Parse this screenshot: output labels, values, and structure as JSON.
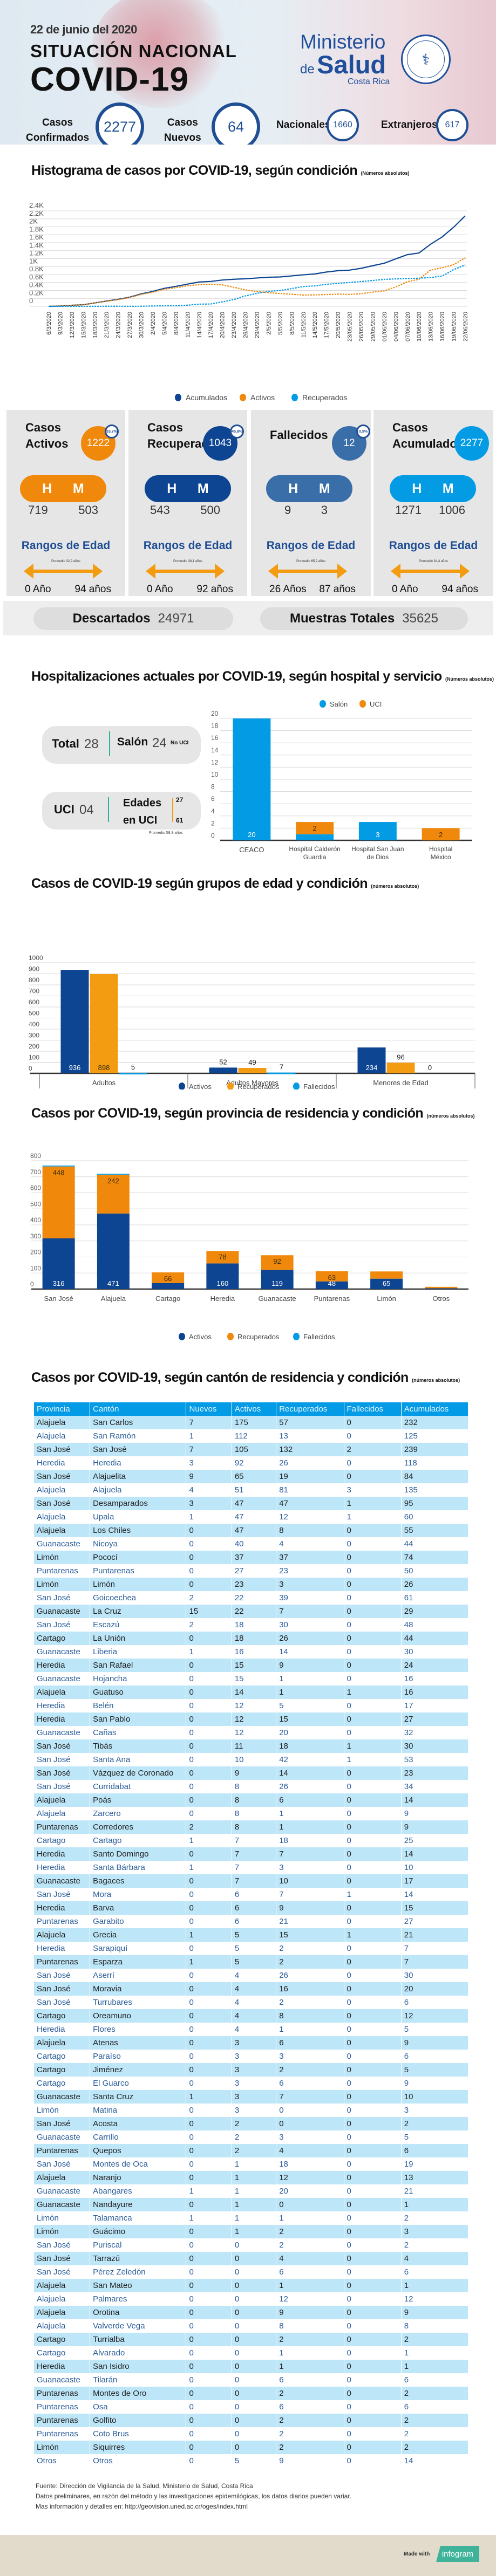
{
  "header": {
    "date": "22 de junio del 2020",
    "subtitle": "SITUACIÓN NACIONAL",
    "title": "COVID-19",
    "logo": {
      "line1": "Ministerio",
      "line2a": "de",
      "line2b": "Salud",
      "line3": "Costa Rica"
    },
    "kpis": {
      "confirmados": {
        "label1": "Casos",
        "label2": "Confirmados",
        "value": "2277"
      },
      "nuevos": {
        "label1": "Casos",
        "label2": "Nuevos",
        "value": "64"
      },
      "nacionales": {
        "label": "Nacionales",
        "value": "1660"
      },
      "extranjeros": {
        "label": "Extranjeros",
        "value": "617"
      }
    }
  },
  "colors": {
    "navy": "#0d4592",
    "orange": "#f0890b",
    "lightblue": "#049be5",
    "steel": "#3a6ea8",
    "ageArrow": "#f39c12"
  },
  "chart1": {
    "title": "Histograma de casos por COVID-19, según condición",
    "note": "(Números absolutos)"
  },
  "cards": [
    {
      "title1": "Casos",
      "title2": "Activos",
      "value": "1222",
      "pct": "53,7%",
      "h": "719",
      "m": "503",
      "hLabel": "H",
      "mLabel": "M",
      "ranges": "Rangos de Edad",
      "avg": "Promedio 32,9 años",
      "min": "0 Año",
      "max": "94 años"
    },
    {
      "title1": "Casos",
      "title2": "Recuperados",
      "value": "1043",
      "pct": "45,8%",
      "h": "543",
      "m": "500",
      "hLabel": "H",
      "mLabel": "M",
      "ranges": "Rangos de Edad",
      "avg": "Promedio 36,1 años",
      "min": "0 Año",
      "max": "92 años"
    },
    {
      "title1": "Fallecidos",
      "title2": "",
      "value": "12",
      "pct": "0,5%",
      "h": "9",
      "m": "3",
      "hLabel": "H",
      "mLabel": "M",
      "ranges": "Rangos de Edad",
      "avg": "Promedio 65,2 años",
      "min": "26 Años",
      "max": "87 años"
    },
    {
      "title1": "Casos",
      "title2": "Acumulados",
      "value": "2277",
      "pct": "",
      "h": "1271",
      "m": "1006",
      "hLabel": "H",
      "mLabel": "M",
      "ranges": "Rangos de Edad",
      "avg": "Promedio 34,4 años",
      "min": "0 Año",
      "max": "94 años"
    }
  ],
  "totals": {
    "descartados": {
      "label": "Descartados",
      "value": "24971"
    },
    "muestras": {
      "label": "Muestras Totales",
      "value": "35625"
    }
  },
  "hosp": {
    "title": "Hospitalizaciones actuales por COVID-19, según hospital y servicio",
    "note": "(Números absolutos)",
    "total_label": "Total",
    "total": "28",
    "salon_label": "Salón",
    "salon": "24",
    "no_uci": "No UCI",
    "uci_label": "UCI",
    "uci": "04",
    "edades1": "Edades",
    "edades2": "en UCI",
    "age_max": "27",
    "age_min": "61",
    "avg": "Promedio 58,9 años"
  },
  "chart_data": [
    {
      "type": "line",
      "title": "Histograma de casos por COVID-19, según condición",
      "subtitle": "(Números absolutos)",
      "xlabel": "",
      "ylabel": "",
      "ylim": [
        0,
        2400
      ],
      "yticks": [
        "0",
        "0.2K",
        "0.4K",
        "0.6K",
        "0.8K",
        "1K",
        "1.2K",
        "1.4K",
        "1.6K",
        "1.8K",
        "2K",
        "2.2K",
        "2.4K"
      ],
      "x_tick_labels": [
        "6/3/2020",
        "9/3/2020",
        "12/3/2020",
        "15/3/2020",
        "18/3/2020",
        "21/3/2020",
        "24/3/2020",
        "27/3/2020",
        "30/3/2020",
        "2/4/2020",
        "5/4/2020",
        "8/4/2020",
        "11/4/2020",
        "14/4/2020",
        "17/4/2020",
        "20/4/2020",
        "23/4/2020",
        "26/4/2020",
        "29/4/2020",
        "2/5/2020",
        "5/5/2020",
        "8/5/2020",
        "11/5/2020",
        "14/5/2020",
        "17/5/2020",
        "20/5/2020",
        "23/05/2020",
        "26/05/2020",
        "29/05/2020",
        "01/06/2020",
        "04/06/2020",
        "07/06/2020",
        "10/06/2020",
        "13/06/2020",
        "16/06/2020",
        "19/06/2020",
        "22/06/2020"
      ],
      "grid": true,
      "legend": "bottom",
      "series": [
        {
          "name": "Acumulados",
          "color": "#0d4592",
          "dash": false,
          "values": [
            1,
            9,
            27,
            41,
            87,
            134,
            177,
            231,
            314,
            375,
            454,
            502,
            558,
            612,
            626,
            662,
            681,
            693,
            713,
            733,
            739,
            765,
            792,
            815,
            863,
            897,
            911,
            956,
            1022,
            1084,
            1194,
            1300,
            1342,
            1561,
            1744,
            1990,
            2277
          ]
        },
        {
          "name": "Activos",
          "color": "#f0890b",
          "dash": true,
          "values": [
            1,
            9,
            26,
            40,
            84,
            129,
            169,
            222,
            300,
            355,
            428,
            470,
            518,
            545,
            557,
            540,
            480,
            415,
            372,
            345,
            323,
            305,
            284,
            289,
            296,
            308,
            300,
            319,
            358,
            390,
            490,
            620,
            680,
            912,
            970,
            1050,
            1222
          ]
        },
        {
          "name": "Recuperados",
          "color": "#049be5",
          "dash": true,
          "values": [
            0,
            0,
            0,
            0,
            2,
            3,
            3,
            2,
            3,
            9,
            16,
            20,
            30,
            56,
            59,
            112,
            171,
            264,
            328,
            375,
            400,
            446,
            498,
            514,
            555,
            577,
            600,
            625,
            650,
            678,
            690,
            700,
            707,
            725,
            760,
            925,
            1043
          ]
        }
      ]
    },
    {
      "type": "bar",
      "title": "Hospitalizaciones actuales por COVID-19, según hospital y servicio",
      "stacked": true,
      "categories": [
        "CEACO",
        "Hospital Calderón Guardia",
        "Hospital San Juan de Dios",
        "Hospital México"
      ],
      "ylim": [
        0,
        20
      ],
      "yticks": [
        0,
        2,
        4,
        6,
        8,
        10,
        12,
        14,
        16,
        18,
        20
      ],
      "legend": "top",
      "series": [
        {
          "name": "Salón",
          "color": "#049be5",
          "values": [
            20,
            1,
            3,
            0
          ]
        },
        {
          "name": "UCI",
          "color": "#f0890b",
          "values": [
            0,
            2,
            0,
            2
          ]
        }
      ]
    },
    {
      "type": "bar",
      "title": "Casos de COVID-19 según grupos de edad y condición",
      "subtitle": "(números absolutos)",
      "stacked": false,
      "categories": [
        "Adultos",
        "Adultos Mayores",
        "Menores de Edad"
      ],
      "ylim": [
        0,
        1000
      ],
      "yticks": [
        0,
        100,
        200,
        300,
        400,
        500,
        600,
        700,
        800,
        900,
        1000
      ],
      "legend": "bottom",
      "series": [
        {
          "name": "Activos",
          "color": "#0d4592",
          "values": [
            936,
            52,
            234
          ]
        },
        {
          "name": "Recuperados",
          "color": "#f39c12",
          "values": [
            898,
            49,
            96
          ]
        },
        {
          "name": "Fallecidos",
          "color": "#049be5",
          "values": [
            5,
            7,
            0
          ]
        }
      ]
    },
    {
      "type": "bar",
      "title": "Casos por COVID-19, según provincia de residencia y condición",
      "subtitle": "(números absolutos)",
      "stacked": true,
      "categories": [
        "San José",
        "Alajuela",
        "Cartago",
        "Heredia",
        "Guanacaste",
        "Puntarenas",
        "Limón",
        "Otros"
      ],
      "ylim": [
        0,
        800
      ],
      "yticks": [
        0,
        100,
        200,
        300,
        400,
        500,
        600,
        700,
        800
      ],
      "legend": "bottom",
      "series": [
        {
          "name": "Activos",
          "color": "#0d4592",
          "values": [
            316,
            471,
            38,
            160,
            119,
            48,
            65,
            5
          ]
        },
        {
          "name": "Recuperados",
          "color": "#f0890b",
          "values": [
            448,
            242,
            66,
            78,
            92,
            63,
            45,
            9
          ]
        },
        {
          "name": "Fallecidos",
          "color": "#049be5",
          "values": [
            6,
            6,
            0,
            0,
            0,
            0,
            0,
            0
          ]
        }
      ]
    }
  ],
  "canton": {
    "title": "Casos por COVID-19, según cantón de residencia y condición",
    "note": "(números absolutos)",
    "columns": [
      "Provincia",
      "Cantón",
      "Nuevos",
      "Activos",
      "Recuperados",
      "Fallecidos",
      "Acumulados"
    ],
    "rows": [
      [
        "Alajuela",
        "San Carlos",
        "7",
        "175",
        "57",
        "0",
        "232"
      ],
      [
        "Alajuela",
        "San Ramón",
        "1",
        "112",
        "13",
        "0",
        "125"
      ],
      [
        "San José",
        "San José",
        "7",
        "105",
        "132",
        "2",
        "239"
      ],
      [
        "Heredia",
        "Heredia",
        "3",
        "92",
        "26",
        "0",
        "118"
      ],
      [
        "San José",
        "Alajuelita",
        "9",
        "65",
        "19",
        "0",
        "84"
      ],
      [
        "Alajuela",
        "Alajuela",
        "4",
        "51",
        "81",
        "3",
        "135"
      ],
      [
        "San José",
        "Desamparados",
        "3",
        "47",
        "47",
        "1",
        "95"
      ],
      [
        "Alajuela",
        "Upala",
        "1",
        "47",
        "12",
        "1",
        "60"
      ],
      [
        "Alajuela",
        "Los Chiles",
        "0",
        "47",
        "8",
        "0",
        "55"
      ],
      [
        "Guanacaste",
        "Nicoya",
        "0",
        "40",
        "4",
        "0",
        "44"
      ],
      [
        "Limón",
        "Pococí",
        "0",
        "37",
        "37",
        "0",
        "74"
      ],
      [
        "Puntarenas",
        "Puntarenas",
        "0",
        "27",
        "23",
        "0",
        "50"
      ],
      [
        "Limón",
        "Limón",
        "0",
        "23",
        "3",
        "0",
        "26"
      ],
      [
        "San José",
        "Goicoechea",
        "2",
        "22",
        "39",
        "0",
        "61"
      ],
      [
        "Guanacaste",
        "La Cruz",
        "15",
        "22",
        "7",
        "0",
        "29"
      ],
      [
        "San José",
        "Escazú",
        "2",
        "18",
        "30",
        "0",
        "48"
      ],
      [
        "Cartago",
        "La Unión",
        "0",
        "18",
        "26",
        "0",
        "44"
      ],
      [
        "Guanacaste",
        "Liberia",
        "1",
        "16",
        "14",
        "0",
        "30"
      ],
      [
        "Heredia",
        "San Rafael",
        "0",
        "15",
        "9",
        "0",
        "24"
      ],
      [
        "Guanacaste",
        "Hojancha",
        "0",
        "15",
        "1",
        "0",
        "16"
      ],
      [
        "Alajuela",
        "Guatuso",
        "0",
        "14",
        "1",
        "1",
        "16"
      ],
      [
        "Heredia",
        "Belén",
        "0",
        "12",
        "5",
        "0",
        "17"
      ],
      [
        "Heredia",
        "San Pablo",
        "0",
        "12",
        "15",
        "0",
        "27"
      ],
      [
        "Guanacaste",
        "Cañas",
        "0",
        "12",
        "20",
        "0",
        "32"
      ],
      [
        "San José",
        "Tibás",
        "0",
        "11",
        "18",
        "1",
        "30"
      ],
      [
        "San José",
        "Santa Ana",
        "0",
        "10",
        "42",
        "1",
        "53"
      ],
      [
        "San José",
        "Vázquez de Coronado",
        "0",
        "9",
        "14",
        "0",
        "23"
      ],
      [
        "San José",
        "Curridabat",
        "0",
        "8",
        "26",
        "0",
        "34"
      ],
      [
        "Alajuela",
        "Poás",
        "0",
        "8",
        "6",
        "0",
        "14"
      ],
      [
        "Alajuela",
        "Zarcero",
        "0",
        "8",
        "1",
        "0",
        "9"
      ],
      [
        "Puntarenas",
        "Corredores",
        "2",
        "8",
        "1",
        "0",
        "9"
      ],
      [
        "Cartago",
        "Cartago",
        "1",
        "7",
        "18",
        "0",
        "25"
      ],
      [
        "Heredia",
        "Santo Domingo",
        "0",
        "7",
        "7",
        "0",
        "14"
      ],
      [
        "Heredia",
        "Santa Bárbara",
        "1",
        "7",
        "3",
        "0",
        "10"
      ],
      [
        "Guanacaste",
        "Bagaces",
        "0",
        "7",
        "10",
        "0",
        "17"
      ],
      [
        "San José",
        "Mora",
        "0",
        "6",
        "7",
        "1",
        "14"
      ],
      [
        "Heredia",
        "Barva",
        "0",
        "6",
        "9",
        "0",
        "15"
      ],
      [
        "Puntarenas",
        "Garabito",
        "0",
        "6",
        "21",
        "0",
        "27"
      ],
      [
        "Alajuela",
        "Grecia",
        "1",
        "5",
        "15",
        "1",
        "21"
      ],
      [
        "Heredia",
        "Sarapiquí",
        "0",
        "5",
        "2",
        "0",
        "7"
      ],
      [
        "Puntarenas",
        "Esparza",
        "1",
        "5",
        "2",
        "0",
        "7"
      ],
      [
        "San José",
        "Aserrí",
        "0",
        "4",
        "26",
        "0",
        "30"
      ],
      [
        "San José",
        "Moravia",
        "0",
        "4",
        "16",
        "0",
        "20"
      ],
      [
        "San José",
        "Turrubares",
        "0",
        "4",
        "2",
        "0",
        "6"
      ],
      [
        "Cartago",
        "Oreamuno",
        "0",
        "4",
        "8",
        "0",
        "12"
      ],
      [
        "Heredia",
        "Flores",
        "0",
        "4",
        "1",
        "0",
        "5"
      ],
      [
        "Alajuela",
        "Atenas",
        "0",
        "3",
        "6",
        "0",
        "9"
      ],
      [
        "Cartago",
        "Paraíso",
        "0",
        "3",
        "3",
        "0",
        "6"
      ],
      [
        "Cartago",
        "Jiménez",
        "0",
        "3",
        "2",
        "0",
        "5"
      ],
      [
        "Cartago",
        "El Guarco",
        "0",
        "3",
        "6",
        "0",
        "9"
      ],
      [
        "Guanacaste",
        "Santa Cruz",
        "1",
        "3",
        "7",
        "0",
        "10"
      ],
      [
        "Limón",
        "Matina",
        "0",
        "3",
        "0",
        "0",
        "3"
      ],
      [
        "San José",
        "Acosta",
        "0",
        "2",
        "0",
        "0",
        "2"
      ],
      [
        "Guanacaste",
        "Carrillo",
        "0",
        "2",
        "3",
        "0",
        "5"
      ],
      [
        "Puntarenas",
        "Quepos",
        "0",
        "2",
        "4",
        "0",
        "6"
      ],
      [
        "San José",
        "Montes de Oca",
        "0",
        "1",
        "18",
        "0",
        "19"
      ],
      [
        "Alajuela",
        "Naranjo",
        "0",
        "1",
        "12",
        "0",
        "13"
      ],
      [
        "Guanacaste",
        "Abangares",
        "1",
        "1",
        "20",
        "0",
        "21"
      ],
      [
        "Guanacaste",
        "Nandayure",
        "0",
        "1",
        "0",
        "0",
        "1"
      ],
      [
        "Limón",
        "Talamanca",
        "1",
        "1",
        "1",
        "0",
        "2"
      ],
      [
        "Limón",
        "Guácimo",
        "0",
        "1",
        "2",
        "0",
        "3"
      ],
      [
        "San José",
        "Puriscal",
        "0",
        "0",
        "2",
        "0",
        "2"
      ],
      [
        "San José",
        "Tarrazú",
        "0",
        "0",
        "4",
        "0",
        "4"
      ],
      [
        "San José",
        "Pérez Zeledón",
        "0",
        "0",
        "6",
        "0",
        "6"
      ],
      [
        "Alajuela",
        "San Mateo",
        "0",
        "0",
        "1",
        "0",
        "1"
      ],
      [
        "Alajuela",
        "Palmares",
        "0",
        "0",
        "12",
        "0",
        "12"
      ],
      [
        "Alajuela",
        "Orotina",
        "0",
        "0",
        "9",
        "0",
        "9"
      ],
      [
        "Alajuela",
        "Valverde Vega",
        "0",
        "0",
        "8",
        "0",
        "8"
      ],
      [
        "Cartago",
        "Turrialba",
        "0",
        "0",
        "2",
        "0",
        "2"
      ],
      [
        "Cartago",
        "Alvarado",
        "0",
        "0",
        "1",
        "0",
        "1"
      ],
      [
        "Heredia",
        "San Isidro",
        "0",
        "0",
        "1",
        "0",
        "1"
      ],
      [
        "Guanacaste",
        "Tilarán",
        "0",
        "0",
        "6",
        "0",
        "6"
      ],
      [
        "Puntarenas",
        "Montes de Oro",
        "0",
        "0",
        "2",
        "0",
        "2"
      ],
      [
        "Puntarenas",
        "Osa",
        "0",
        "0",
        "6",
        "0",
        "6"
      ],
      [
        "Puntarenas",
        "Golfito",
        "0",
        "0",
        "2",
        "0",
        "2"
      ],
      [
        "Puntarenas",
        "Coto Brus",
        "0",
        "0",
        "2",
        "0",
        "2"
      ],
      [
        "Limón",
        "Siquirres",
        "0",
        "0",
        "2",
        "0",
        "2"
      ],
      [
        "Otros",
        "Otros",
        "0",
        "5",
        "9",
        "0",
        "14"
      ]
    ]
  },
  "footer": {
    "line1": "Fuente: Dirección de Vigilancia de la Salud, Ministerio de Salud, Costa Rica",
    "line2": "Datos preliminares, en razón del método y las investigaciones epidemilógicas, los datos diarios pueden variar.",
    "line3": "Mas información y detalles en: http://geovision.uned.ac.cr/oges/index.html",
    "made_with": "Made with",
    "brand": "infogram"
  }
}
